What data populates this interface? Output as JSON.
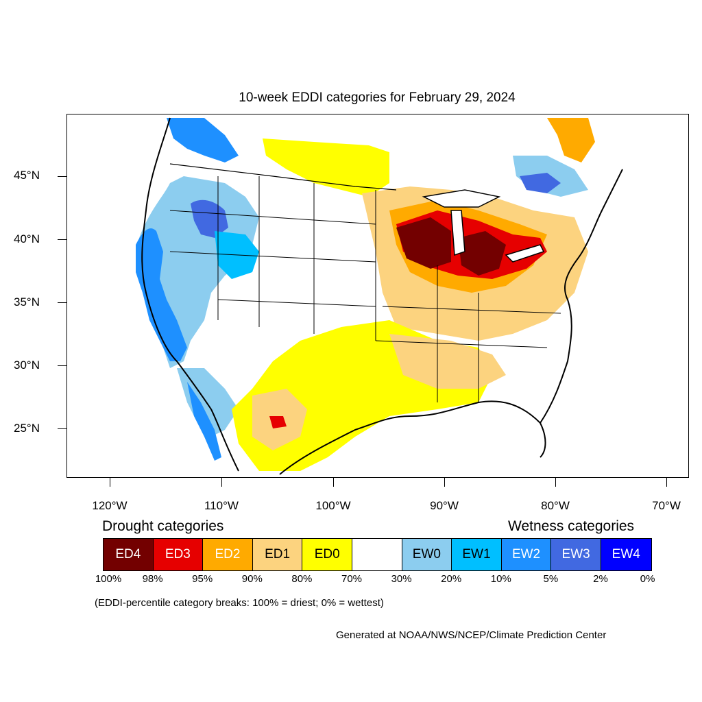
{
  "title": "10-week EDDI categories for February 29, 2024",
  "axes": {
    "lat_labels": [
      "45°N",
      "40°N",
      "35°N",
      "30°N",
      "25°N"
    ],
    "lon_labels": [
      "120°W",
      "110°W",
      "100°W",
      "90°W",
      "80°W",
      "70°W"
    ]
  },
  "legend": {
    "drought_heading": "Drought categories",
    "wetness_heading": "Wetness categories",
    "categories": [
      {
        "label": "ED4",
        "color": "#730000",
        "text_color": "#ffffff"
      },
      {
        "label": "ED3",
        "color": "#e60000",
        "text_color": "#ffffff"
      },
      {
        "label": "ED2",
        "color": "#ffaa00",
        "text_color": "#ffffff"
      },
      {
        "label": "ED1",
        "color": "#fcd37f",
        "text_color": "#000000"
      },
      {
        "label": "ED0",
        "color": "#ffff00",
        "text_color": "#000000"
      },
      {
        "label": "",
        "color": "#ffffff",
        "text_color": "#000000"
      },
      {
        "label": "EW0",
        "color": "#8ccdef",
        "text_color": "#000000"
      },
      {
        "label": "EW1",
        "color": "#00bfff",
        "text_color": "#000000"
      },
      {
        "label": "EW2",
        "color": "#1e90ff",
        "text_color": "#ffffff"
      },
      {
        "label": "EW3",
        "color": "#4169e1",
        "text_color": "#ffffff"
      },
      {
        "label": "EW4",
        "color": "#0000ff",
        "text_color": "#ffffff"
      }
    ],
    "breaks": [
      "100%",
      "98%",
      "95%",
      "90%",
      "80%",
      "70%",
      "30%",
      "20%",
      "10%",
      "5%",
      "2%",
      "0%"
    ]
  },
  "note": "(EDDI-percentile category breaks: 100% = driest; 0% = wettest)",
  "credit": "Generated at NOAA/NWS/NCEP/Climate Prediction Center"
}
